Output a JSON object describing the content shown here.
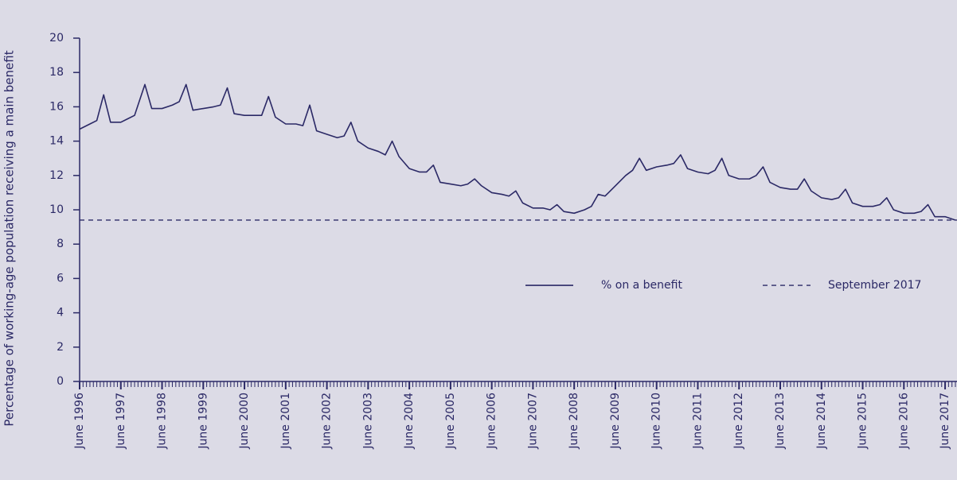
{
  "chart_data": {
    "type": "line",
    "y_label": "Percentage of working-age population receiving a main benefit",
    "x": [
      "1996-06",
      "1996-09",
      "1996-11",
      "1997-01",
      "1997-03",
      "1997-06",
      "1997-08",
      "1997-10",
      "1998-01",
      "1998-03",
      "1998-06",
      "1998-09",
      "1998-11",
      "1999-01",
      "1999-03",
      "1999-06",
      "1999-09",
      "1999-11",
      "2000-01",
      "2000-03",
      "2000-06",
      "2000-09",
      "2000-11",
      "2001-01",
      "2001-03",
      "2001-06",
      "2001-09",
      "2001-11",
      "2002-01",
      "2002-03",
      "2002-06",
      "2002-09",
      "2002-11",
      "2003-01",
      "2003-03",
      "2003-06",
      "2003-09",
      "2003-11",
      "2004-01",
      "2004-03",
      "2004-06",
      "2004-09",
      "2004-11",
      "2005-01",
      "2005-03",
      "2005-06",
      "2005-09",
      "2005-11",
      "2006-01",
      "2006-03",
      "2006-06",
      "2006-09",
      "2006-11",
      "2007-01",
      "2007-03",
      "2007-06",
      "2007-09",
      "2007-11",
      "2008-01",
      "2008-03",
      "2008-06",
      "2008-09",
      "2008-11",
      "2009-01",
      "2009-03",
      "2009-06",
      "2009-09",
      "2009-11",
      "2010-01",
      "2010-03",
      "2010-06",
      "2010-09",
      "2010-11",
      "2011-01",
      "2011-03",
      "2011-06",
      "2011-09",
      "2011-11",
      "2012-01",
      "2012-03",
      "2012-06",
      "2012-09",
      "2012-11",
      "2013-01",
      "2013-03",
      "2013-06",
      "2013-09",
      "2013-11",
      "2014-01",
      "2014-03",
      "2014-06",
      "2014-09",
      "2014-11",
      "2015-01",
      "2015-03",
      "2015-06",
      "2015-09",
      "2015-11",
      "2016-01",
      "2016-03",
      "2016-06",
      "2016-09",
      "2016-11",
      "2017-01",
      "2017-03",
      "2017-06",
      "2017-09"
    ],
    "series": [
      {
        "name": "% on a benefit",
        "color": "#2b2966",
        "values": [
          14.7,
          15.0,
          15.2,
          16.7,
          15.1,
          15.1,
          15.3,
          15.5,
          17.3,
          15.9,
          15.9,
          16.1,
          16.3,
          17.3,
          15.8,
          15.9,
          16.0,
          16.1,
          17.1,
          15.6,
          15.5,
          15.5,
          15.5,
          16.6,
          15.4,
          15.0,
          15.0,
          14.9,
          16.1,
          14.6,
          14.4,
          14.2,
          14.3,
          15.1,
          14.0,
          13.6,
          13.4,
          13.2,
          14.0,
          13.1,
          12.4,
          12.2,
          12.2,
          12.6,
          11.6,
          11.5,
          11.4,
          11.5,
          11.8,
          11.4,
          11.0,
          10.9,
          10.8,
          11.1,
          10.4,
          10.1,
          10.1,
          10.0,
          10.3,
          9.9,
          9.8,
          10.0,
          10.2,
          10.9,
          10.8,
          11.4,
          12.0,
          12.3,
          13.0,
          12.3,
          12.5,
          12.6,
          12.7,
          13.2,
          12.4,
          12.2,
          12.1,
          12.3,
          13.0,
          12.0,
          11.8,
          11.8,
          12.0,
          12.5,
          11.6,
          11.3,
          11.2,
          11.2,
          11.8,
          11.1,
          10.7,
          10.6,
          10.7,
          11.2,
          10.4,
          10.2,
          10.2,
          10.3,
          10.7,
          10.0,
          9.8,
          9.8,
          9.9,
          10.3,
          9.6,
          9.6,
          9.4
        ]
      }
    ],
    "reference_line": {
      "name": "September 2017",
      "value": 9.4,
      "color": "#2b2966"
    },
    "ylim": [
      0,
      20
    ],
    "yticks": [
      0,
      2,
      4,
      6,
      8,
      10,
      12,
      14,
      16,
      18,
      20
    ],
    "xlim": [
      "1996-06",
      "2017-09"
    ],
    "xticks": [
      {
        "value": "1996-06",
        "label": "June 1996"
      },
      {
        "value": "1997-06",
        "label": "June 1997"
      },
      {
        "value": "1998-06",
        "label": "June 1998"
      },
      {
        "value": "1999-06",
        "label": "June 1999"
      },
      {
        "value": "2000-06",
        "label": "June 2000"
      },
      {
        "value": "2001-06",
        "label": "June 2001"
      },
      {
        "value": "2002-06",
        "label": "June 2002"
      },
      {
        "value": "2003-06",
        "label": "June 2003"
      },
      {
        "value": "2004-06",
        "label": "June 2004"
      },
      {
        "value": "2005-06",
        "label": "June 2005"
      },
      {
        "value": "2006-06",
        "label": "June 2006"
      },
      {
        "value": "2007-06",
        "label": "June 2007"
      },
      {
        "value": "2008-06",
        "label": "June 2008"
      },
      {
        "value": "2009-06",
        "label": "June 2009"
      },
      {
        "value": "2010-06",
        "label": "June 2010"
      },
      {
        "value": "2011-06",
        "label": "June 2011"
      },
      {
        "value": "2012-06",
        "label": "June 2012"
      },
      {
        "value": "2013-06",
        "label": "June 2013"
      },
      {
        "value": "2014-06",
        "label": "June 2014"
      },
      {
        "value": "2015-06",
        "label": "June 2015"
      },
      {
        "value": "2016-06",
        "label": "June 2016"
      },
      {
        "value": "2017-06",
        "label": "June 2017"
      }
    ]
  }
}
